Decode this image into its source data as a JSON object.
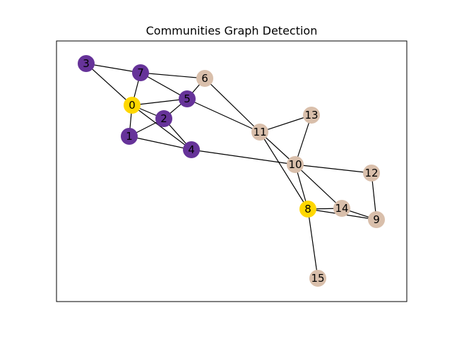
{
  "figure": {
    "title": "Communities Graph Detection"
  },
  "colors": {
    "community_purple": "#663399",
    "community_tan": "#d9bfab",
    "highlight_gold": "#ffd700",
    "edge": "#000000",
    "frame": "#000000"
  },
  "graph": {
    "nodes": [
      {
        "id": "0",
        "label": "0",
        "color": "#ffd700"
      },
      {
        "id": "1",
        "label": "1",
        "color": "#663399"
      },
      {
        "id": "2",
        "label": "2",
        "color": "#663399"
      },
      {
        "id": "3",
        "label": "3",
        "color": "#663399"
      },
      {
        "id": "4",
        "label": "4",
        "color": "#663399"
      },
      {
        "id": "5",
        "label": "5",
        "color": "#663399"
      },
      {
        "id": "6",
        "label": "6",
        "color": "#d9bfab"
      },
      {
        "id": "7",
        "label": "7",
        "color": "#663399"
      },
      {
        "id": "8",
        "label": "8",
        "color": "#ffd700"
      },
      {
        "id": "9",
        "label": "9",
        "color": "#d9bfab"
      },
      {
        "id": "10",
        "label": "10",
        "color": "#d9bfab"
      },
      {
        "id": "11",
        "label": "11",
        "color": "#d9bfab"
      },
      {
        "id": "12",
        "label": "12",
        "color": "#d9bfab"
      },
      {
        "id": "13",
        "label": "13",
        "color": "#d9bfab"
      },
      {
        "id": "14",
        "label": "14",
        "color": "#d9bfab"
      },
      {
        "id": "15",
        "label": "15",
        "color": "#d9bfab"
      }
    ],
    "edges": [
      [
        "3",
        "7"
      ],
      [
        "3",
        "0"
      ],
      [
        "7",
        "0"
      ],
      [
        "7",
        "6"
      ],
      [
        "7",
        "5"
      ],
      [
        "0",
        "5"
      ],
      [
        "0",
        "2"
      ],
      [
        "0",
        "1"
      ],
      [
        "0",
        "4"
      ],
      [
        "5",
        "2"
      ],
      [
        "5",
        "6"
      ],
      [
        "5",
        "11"
      ],
      [
        "2",
        "1"
      ],
      [
        "2",
        "4"
      ],
      [
        "1",
        "4"
      ],
      [
        "4",
        "10"
      ],
      [
        "6",
        "11"
      ],
      [
        "11",
        "13"
      ],
      [
        "11",
        "10"
      ],
      [
        "11",
        "8"
      ],
      [
        "13",
        "10"
      ],
      [
        "10",
        "12"
      ],
      [
        "10",
        "8"
      ],
      [
        "10",
        "14"
      ],
      [
        "12",
        "9"
      ],
      [
        "8",
        "14"
      ],
      [
        "8",
        "9"
      ],
      [
        "8",
        "15"
      ],
      [
        "14",
        "9"
      ]
    ]
  }
}
